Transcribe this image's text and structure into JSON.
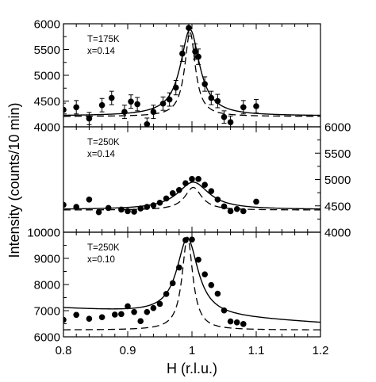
{
  "chart_data": {
    "type": "scatter",
    "xlabel": "H (r.l.u.)",
    "ylabel": "Intensity (counts/10 min)",
    "xlim": [
      0.8,
      1.2
    ],
    "xticks": [
      "0.8",
      "0.9",
      "1",
      "1.1",
      "1.2"
    ],
    "x_minor_step": 0.02,
    "marker_color": "#000000",
    "panels": [
      {
        "annotation": [
          "T=175K",
          "x=0.14"
        ],
        "ylim": [
          4000,
          6000
        ],
        "y_axis_side": "left",
        "yticks": [
          4000,
          4500,
          5000,
          5500,
          6000
        ],
        "ytick_labels": [
          "4000",
          "4500",
          "5000",
          "5500",
          "6000"
        ],
        "points": [
          {
            "x": 0.8,
            "y": 4330,
            "err": 130
          },
          {
            "x": 0.82,
            "y": 4380,
            "err": 130
          },
          {
            "x": 0.84,
            "y": 4160,
            "err": 120
          },
          {
            "x": 0.86,
            "y": 4420,
            "err": 130
          },
          {
            "x": 0.875,
            "y": 4560,
            "err": 130
          },
          {
            "x": 0.895,
            "y": 4290,
            "err": 130
          },
          {
            "x": 0.905,
            "y": 4490,
            "err": 130
          },
          {
            "x": 0.915,
            "y": 4440,
            "err": 130
          },
          {
            "x": 0.93,
            "y": 4050,
            "err": 120
          },
          {
            "x": 0.94,
            "y": 4290,
            "err": 130
          },
          {
            "x": 0.955,
            "y": 4450,
            "err": 130
          },
          {
            "x": 0.965,
            "y": 4530,
            "err": 130
          },
          {
            "x": 0.975,
            "y": 4760,
            "err": 140
          },
          {
            "x": 0.985,
            "y": 5420,
            "err": 150
          },
          {
            "x": 0.995,
            "y": 5920,
            "err": 160
          },
          {
            "x": 1.005,
            "y": 5460,
            "err": 150
          },
          {
            "x": 1.01,
            "y": 5360,
            "err": 150
          },
          {
            "x": 1.02,
            "y": 4830,
            "err": 140
          },
          {
            "x": 1.03,
            "y": 4560,
            "err": 130
          },
          {
            "x": 1.04,
            "y": 4500,
            "err": 130
          },
          {
            "x": 1.05,
            "y": 4190,
            "err": 120
          },
          {
            "x": 1.06,
            "y": 4090,
            "err": 120
          },
          {
            "x": 1.08,
            "y": 4380,
            "err": 130
          },
          {
            "x": 1.1,
            "y": 4400,
            "err": 130
          }
        ],
        "fit_solid": {
          "bg": 4210,
          "bg_slope": 0,
          "amp": 1680,
          "center": 0.997,
          "hwhm": 0.018
        },
        "fit_dashed": {
          "bg": 4200,
          "bg_slope": 0,
          "amp": 1640,
          "center": 0.997,
          "hwhm": 0.01
        }
      },
      {
        "annotation": [
          "T=250K",
          "x=0.14"
        ],
        "ylim": [
          4000,
          6000
        ],
        "y_axis_side": "right",
        "yticks": [
          4000,
          4500,
          5000,
          5500,
          6000
        ],
        "ytick_labels": [
          "4000",
          "4500",
          "5000",
          "5500",
          "6000"
        ],
        "points": [
          {
            "x": 0.8,
            "y": 4520
          },
          {
            "x": 0.82,
            "y": 4480
          },
          {
            "x": 0.84,
            "y": 4620
          },
          {
            "x": 0.855,
            "y": 4380
          },
          {
            "x": 0.87,
            "y": 4460
          },
          {
            "x": 0.89,
            "y": 4430
          },
          {
            "x": 0.9,
            "y": 4400
          },
          {
            "x": 0.91,
            "y": 4390
          },
          {
            "x": 0.92,
            "y": 4450
          },
          {
            "x": 0.93,
            "y": 4480
          },
          {
            "x": 0.94,
            "y": 4510
          },
          {
            "x": 0.95,
            "y": 4560
          },
          {
            "x": 0.96,
            "y": 4640
          },
          {
            "x": 0.97,
            "y": 4740
          },
          {
            "x": 0.98,
            "y": 4800
          },
          {
            "x": 0.99,
            "y": 4930
          },
          {
            "x": 1.0,
            "y": 5010
          },
          {
            "x": 1.01,
            "y": 5010
          },
          {
            "x": 1.02,
            "y": 4900
          },
          {
            "x": 1.03,
            "y": 4780
          },
          {
            "x": 1.04,
            "y": 4620
          },
          {
            "x": 1.05,
            "y": 4490
          },
          {
            "x": 1.06,
            "y": 4400
          },
          {
            "x": 1.07,
            "y": 4440
          },
          {
            "x": 1.08,
            "y": 4400
          },
          {
            "x": 1.1,
            "y": 4580
          }
        ],
        "fit_solid": {
          "bg": 4430,
          "bg_slope": 0,
          "amp": 520,
          "center": 1.002,
          "hwhm": 0.03
        },
        "fit_dashed": {
          "bg": 4420,
          "bg_slope": 0,
          "amp": 430,
          "center": 1.002,
          "hwhm": 0.016
        }
      },
      {
        "annotation": [
          "T=250K",
          "x=0.10"
        ],
        "ylim": [
          6000,
          10000
        ],
        "y_axis_side": "left",
        "yticks": [
          6000,
          7000,
          8000,
          9000,
          10000
        ],
        "ytick_labels": [
          "6000",
          "7000",
          "8000",
          "9000",
          "10000"
        ],
        "points": [
          {
            "x": 0.8,
            "y": 6650
          },
          {
            "x": 0.82,
            "y": 6840
          },
          {
            "x": 0.84,
            "y": 6690
          },
          {
            "x": 0.86,
            "y": 6750
          },
          {
            "x": 0.88,
            "y": 6850
          },
          {
            "x": 0.89,
            "y": 6870
          },
          {
            "x": 0.9,
            "y": 7170
          },
          {
            "x": 0.91,
            "y": 6950
          },
          {
            "x": 0.92,
            "y": 6600
          },
          {
            "x": 0.93,
            "y": 6950
          },
          {
            "x": 0.94,
            "y": 7100
          },
          {
            "x": 0.95,
            "y": 7260
          },
          {
            "x": 0.96,
            "y": 7640
          },
          {
            "x": 0.97,
            "y": 8050
          },
          {
            "x": 0.98,
            "y": 8650
          },
          {
            "x": 0.99,
            "y": 9700
          },
          {
            "x": 1.0,
            "y": 9720
          },
          {
            "x": 1.01,
            "y": 8950
          },
          {
            "x": 1.02,
            "y": 8390
          },
          {
            "x": 1.03,
            "y": 7980
          },
          {
            "x": 1.04,
            "y": 7650
          },
          {
            "x": 1.05,
            "y": 7010
          },
          {
            "x": 1.06,
            "y": 6590
          },
          {
            "x": 1.07,
            "y": 6550
          },
          {
            "x": 1.08,
            "y": 6490
          }
        ],
        "fit_solid": {
          "bg": 6820,
          "bg_slope": -1400,
          "amp": 2950,
          "center": 0.993,
          "hwhm": 0.02
        },
        "fit_dashed": {
          "bg": 6260,
          "bg_slope": 0,
          "amp": 3560,
          "center": 0.993,
          "hwhm": 0.01
        }
      }
    ]
  }
}
